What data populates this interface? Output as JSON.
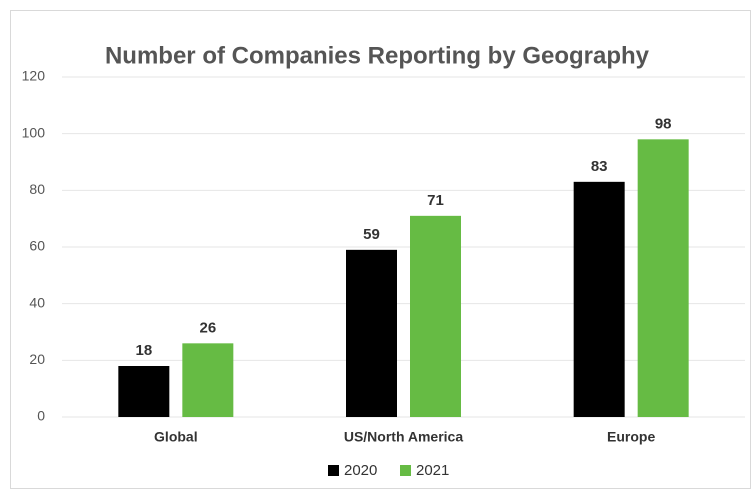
{
  "chart_data": {
    "type": "bar",
    "title": "Number of Companies Reporting by Geography",
    "categories": [
      "Global",
      "US/North America",
      "Europe"
    ],
    "series": [
      {
        "name": "2020",
        "color": "#000000",
        "values": [
          18,
          59,
          83
        ]
      },
      {
        "name": "2021",
        "color": "#66bb44",
        "values": [
          26,
          71,
          98
        ]
      }
    ],
    "ylim": [
      0,
      120
    ],
    "yticks": [
      0,
      20,
      40,
      60,
      80,
      100,
      120
    ],
    "grid": true,
    "legend": "bottom"
  }
}
